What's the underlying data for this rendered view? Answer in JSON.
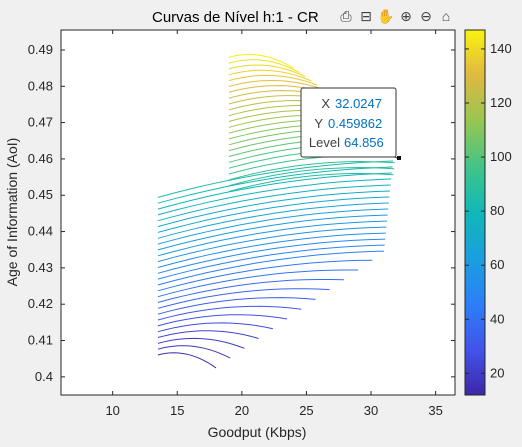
{
  "chart_data": {
    "type": "contour",
    "title": "Curvas de Nível h:1 - CR",
    "xlabel": "Goodput (Kbps)",
    "ylabel": "Age of Information (AoI)",
    "xlim": [
      6,
      36.5
    ],
    "ylim": [
      0.395,
      0.4955
    ],
    "xticks": [
      10,
      15,
      20,
      25,
      30,
      35
    ],
    "yticks": [
      0.4,
      0.41,
      0.42,
      0.43,
      0.44,
      0.45,
      0.46,
      0.47,
      0.48,
      0.49
    ],
    "colorbar": {
      "min": 12,
      "max": 147,
      "ticks": [
        20,
        40,
        60,
        80,
        100,
        120,
        140
      ],
      "colormap": "parula"
    },
    "region": {
      "x_left": 13.5,
      "x_mid": 19,
      "x_right": 32,
      "y_bottom": 0.406,
      "y_top": 0.488
    },
    "level_range": [
      15,
      145
    ],
    "datatip": {
      "x_label": "X",
      "x": "32.0247",
      "y_label": "Y",
      "y": "0.459862",
      "level_label": "Level",
      "level": "64.856"
    }
  },
  "toolbar": [
    "export-icon",
    "datatip-icon",
    "pan-icon",
    "zoom-in-icon",
    "zoom-out-icon",
    "home-icon"
  ]
}
